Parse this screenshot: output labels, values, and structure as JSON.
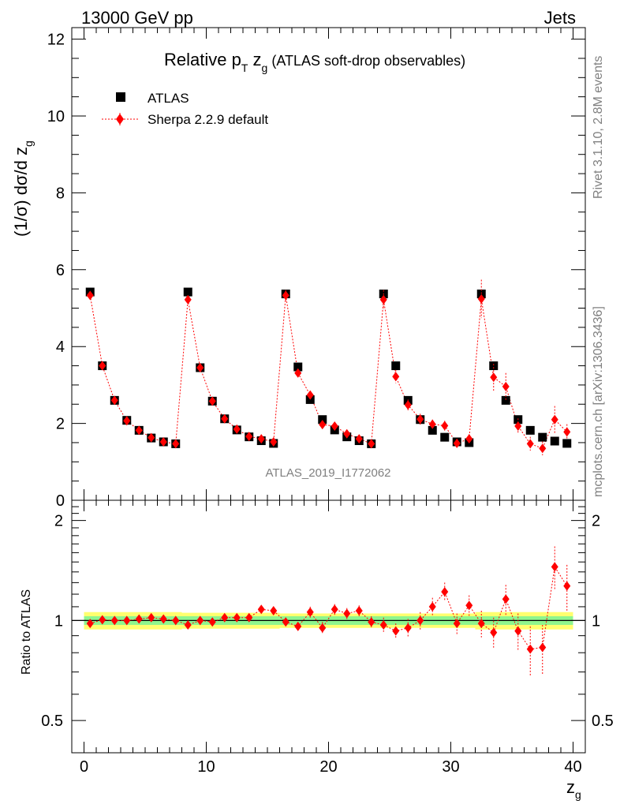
{
  "header": {
    "left": "13000 GeV pp",
    "right": "Jets"
  },
  "side": {
    "rivet": "Rivet 3.1.10,  2.8M events",
    "mcplots": "mcplots.cern.ch [arXiv:1306.3436]"
  },
  "watermark": "ATLAS_2019_I1772062",
  "chart_data": [
    {
      "type": "scatter",
      "title_parts": {
        "main": "Relative p",
        "sub": "T",
        "mid": " z",
        "sub2": "g",
        "tail": " (ATLAS soft-drop observables)"
      },
      "ylabel_parts": {
        "main": "(1/σ) dσ/d z",
        "sub": "g"
      },
      "xlim": [
        -1,
        41
      ],
      "ylim": [
        0,
        12.3
      ],
      "yticks": [
        0,
        2,
        4,
        6,
        8,
        10,
        12
      ],
      "legend": [
        "ATLAS",
        "Sherpa 2.2.9 default"
      ],
      "x": [
        0.5,
        1.5,
        2.5,
        3.5,
        4.5,
        5.5,
        6.5,
        7.5,
        8.5,
        9.5,
        10.5,
        11.5,
        12.5,
        13.5,
        14.5,
        15.5,
        16.5,
        17.5,
        18.5,
        19.5,
        20.5,
        21.5,
        22.5,
        23.5,
        24.5,
        25.5,
        26.5,
        27.5,
        28.5,
        29.5,
        30.5,
        31.5,
        32.5,
        33.5,
        34.5,
        35.5,
        36.5,
        37.5,
        38.5,
        39.5
      ],
      "series": [
        {
          "name": "ATLAS",
          "color": "#000000",
          "marker": "square",
          "values": [
            5.42,
            3.5,
            2.6,
            2.08,
            1.82,
            1.62,
            1.52,
            1.47,
            5.42,
            3.45,
            2.58,
            2.12,
            1.83,
            1.65,
            1.55,
            1.48,
            5.37,
            3.47,
            2.62,
            2.1,
            1.83,
            1.65,
            1.55,
            1.47,
            5.37,
            3.5,
            2.6,
            2.1,
            1.82,
            1.64,
            1.52,
            1.5,
            5.37,
            3.5,
            2.6,
            2.1,
            1.82,
            1.64,
            1.54,
            1.48
          ],
          "errors": [
            0.03,
            0.03,
            0.03,
            0.03,
            0.03,
            0.03,
            0.03,
            0.03,
            0.03,
            0.03,
            0.03,
            0.03,
            0.03,
            0.03,
            0.03,
            0.03,
            0.04,
            0.04,
            0.04,
            0.04,
            0.04,
            0.04,
            0.04,
            0.04,
            0.05,
            0.05,
            0.05,
            0.05,
            0.05,
            0.05,
            0.05,
            0.05,
            0.08,
            0.08,
            0.08,
            0.08,
            0.08,
            0.08,
            0.08,
            0.08
          ]
        },
        {
          "name": "Sherpa 2.2.9 default",
          "color": "#ff0000",
          "marker": "diamond",
          "values": [
            5.33,
            3.5,
            2.6,
            2.07,
            1.82,
            1.63,
            1.52,
            1.47,
            5.22,
            3.45,
            2.58,
            2.12,
            1.85,
            1.66,
            1.6,
            1.52,
            5.33,
            3.31,
            2.74,
            1.97,
            1.93,
            1.73,
            1.6,
            1.47,
            5.22,
            3.22,
            2.48,
            2.11,
            1.98,
            1.94,
            1.48,
            1.6,
            5.24,
            3.2,
            2.96,
            1.93,
            1.47,
            1.35,
            2.1,
            1.78
          ],
          "errors": [
            0.05,
            0.05,
            0.05,
            0.05,
            0.05,
            0.05,
            0.05,
            0.05,
            0.08,
            0.06,
            0.06,
            0.06,
            0.06,
            0.06,
            0.06,
            0.06,
            0.14,
            0.1,
            0.1,
            0.08,
            0.08,
            0.08,
            0.08,
            0.08,
            0.25,
            0.17,
            0.14,
            0.14,
            0.12,
            0.13,
            0.12,
            0.12,
            0.5,
            0.35,
            0.35,
            0.2,
            0.18,
            0.18,
            0.35,
            0.2
          ]
        }
      ]
    },
    {
      "type": "scatter",
      "ylabel": "Ratio to ATLAS",
      "xlabel_parts": {
        "main": "z",
        "sub": "g"
      },
      "xlim": [
        -1,
        41
      ],
      "ylim": [
        0.4,
        2.3
      ],
      "log_y": true,
      "yticks": [
        0.5,
        1,
        2
      ],
      "xticks": [
        0,
        10,
        20,
        30,
        40
      ],
      "band_colors": {
        "inner": "#8ef58e",
        "outer": "#ffff6e"
      },
      "x": [
        0.5,
        1.5,
        2.5,
        3.5,
        4.5,
        5.5,
        6.5,
        7.5,
        8.5,
        9.5,
        10.5,
        11.5,
        12.5,
        13.5,
        14.5,
        15.5,
        16.5,
        17.5,
        18.5,
        19.5,
        20.5,
        21.5,
        22.5,
        23.5,
        24.5,
        25.5,
        26.5,
        27.5,
        28.5,
        29.5,
        30.5,
        31.5,
        32.5,
        33.5,
        34.5,
        35.5,
        36.5,
        37.5,
        38.5,
        39.5
      ],
      "band_inner": [
        0.03,
        0.03,
        0.03,
        0.03,
        0.03,
        0.03,
        0.03,
        0.03,
        0.03,
        0.03,
        0.03,
        0.03,
        0.03,
        0.03,
        0.03,
        0.03,
        0.03,
        0.03,
        0.03,
        0.03,
        0.03,
        0.03,
        0.03,
        0.03,
        0.03,
        0.03,
        0.03,
        0.03,
        0.03,
        0.03,
        0.03,
        0.03,
        0.03,
        0.03,
        0.03,
        0.03,
        0.03,
        0.03,
        0.03,
        0.03
      ],
      "band_outer": [
        0.06,
        0.06,
        0.06,
        0.06,
        0.06,
        0.06,
        0.06,
        0.06,
        0.055,
        0.055,
        0.055,
        0.055,
        0.055,
        0.055,
        0.055,
        0.055,
        0.05,
        0.05,
        0.05,
        0.05,
        0.05,
        0.05,
        0.05,
        0.05,
        0.05,
        0.05,
        0.05,
        0.05,
        0.05,
        0.05,
        0.05,
        0.05,
        0.06,
        0.06,
        0.06,
        0.06,
        0.06,
        0.06,
        0.06,
        0.06
      ],
      "series": [
        {
          "name": "Sherpa 2.2.9 default",
          "color": "#ff0000",
          "values": [
            0.98,
            1.005,
            1.0,
            1.0,
            1.01,
            1.02,
            1.01,
            1.0,
            0.97,
            1.0,
            0.99,
            1.02,
            1.02,
            1.02,
            1.08,
            1.07,
            0.99,
            0.96,
            1.06,
            0.95,
            1.08,
            1.05,
            1.07,
            0.99,
            0.97,
            0.93,
            0.95,
            1.0,
            1.1,
            1.22,
            0.98,
            1.11,
            0.98,
            0.92,
            1.16,
            0.93,
            0.82,
            0.83,
            1.45,
            1.27
          ],
          "errors": [
            0.02,
            0.02,
            0.02,
            0.02,
            0.02,
            0.02,
            0.02,
            0.02,
            0.02,
            0.02,
            0.02,
            0.02,
            0.02,
            0.02,
            0.03,
            0.03,
            0.03,
            0.03,
            0.04,
            0.04,
            0.04,
            0.04,
            0.04,
            0.04,
            0.05,
            0.05,
            0.06,
            0.06,
            0.07,
            0.08,
            0.07,
            0.08,
            0.09,
            0.1,
            0.12,
            0.12,
            0.14,
            0.14,
            0.22,
            0.2
          ]
        }
      ]
    }
  ]
}
